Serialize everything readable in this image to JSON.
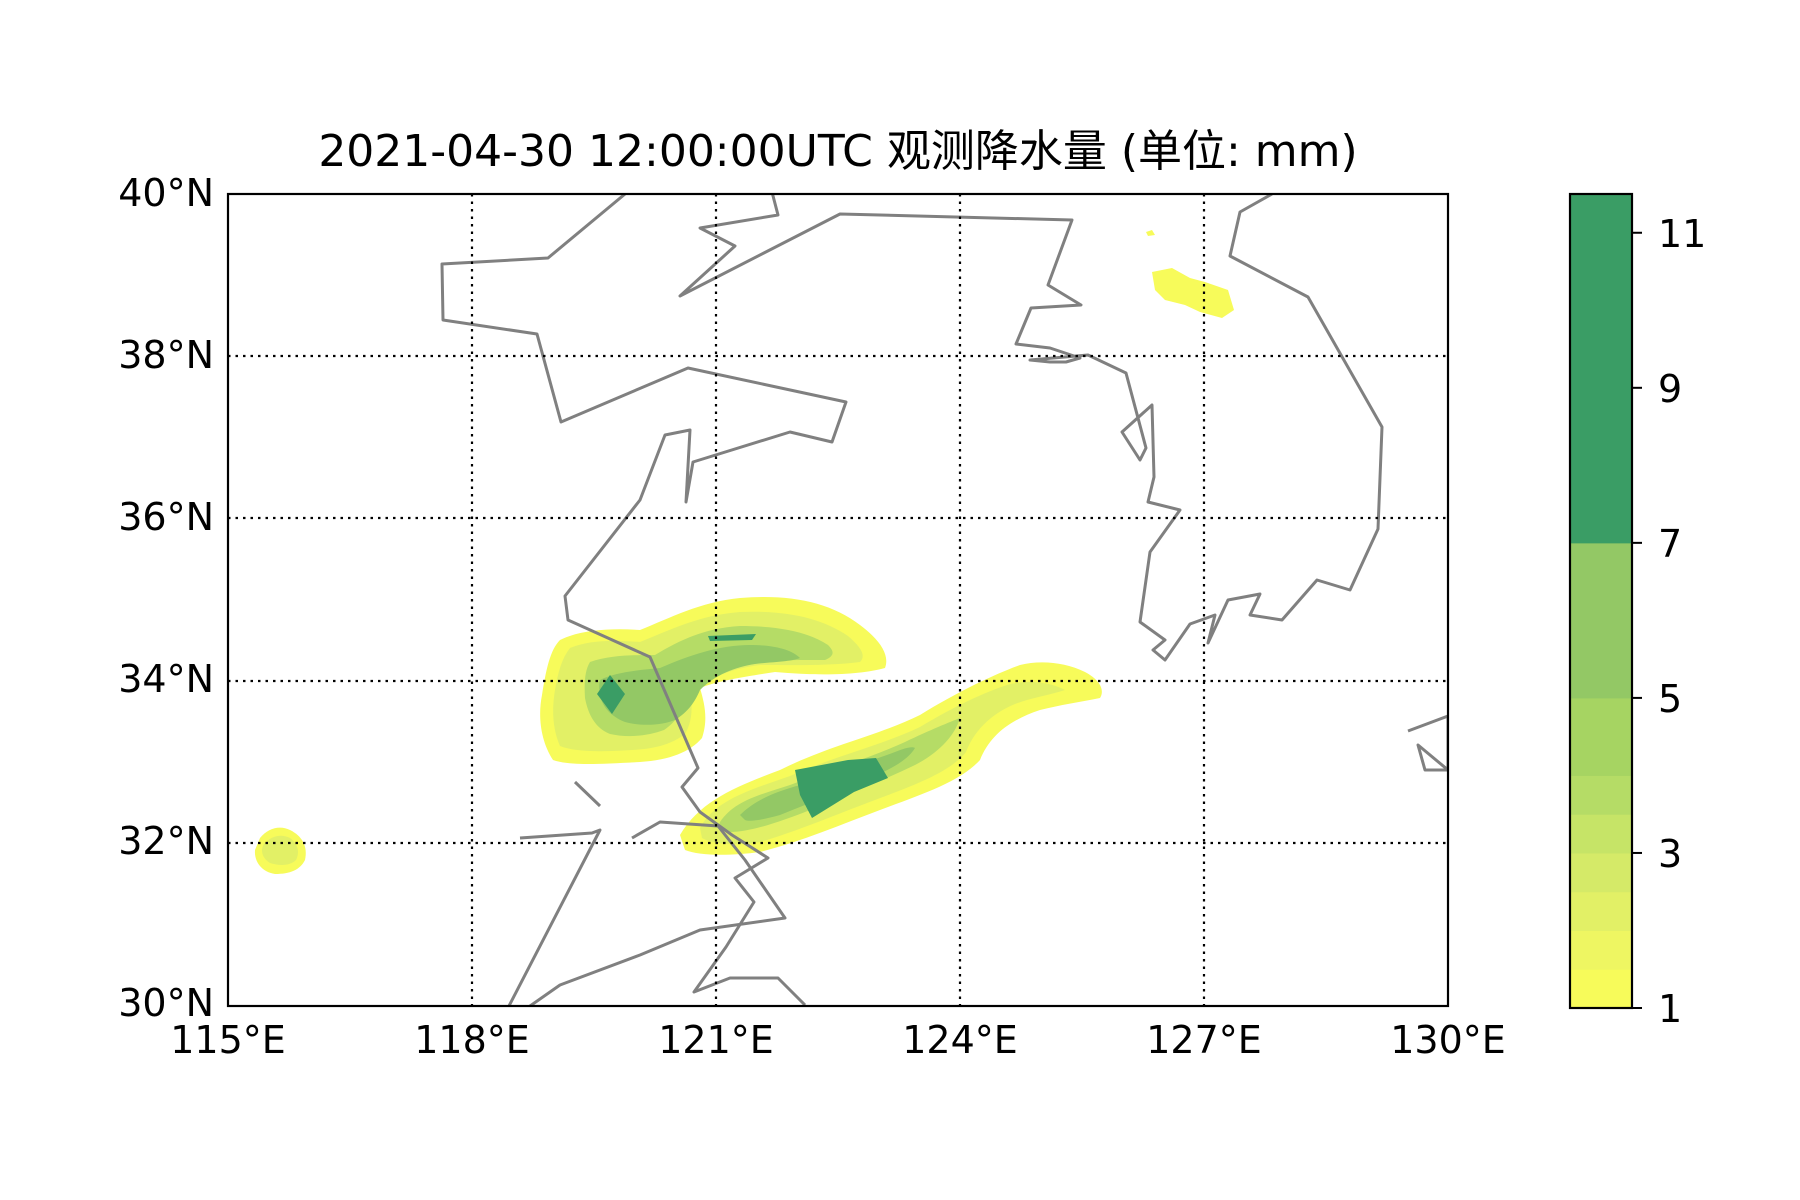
{
  "map": {
    "title": "2021-04-30 12:00:00UTC 观测降水量 (单位: mm)",
    "lat_labels": [
      "40°N",
      "38°N",
      "36°N",
      "34°N",
      "32°N",
      "30°N"
    ],
    "lon_labels": [
      "115°E",
      "118°E",
      "121°E",
      "124°E",
      "127°E",
      "130°E"
    ],
    "extent": {
      "lon": [
        115,
        130
      ],
      "lat": [
        30,
        40
      ]
    },
    "gridlines": {
      "style": "dotted",
      "color": "#000000",
      "lon": [
        118,
        121,
        124,
        127
      ],
      "lat": [
        32,
        34,
        36,
        38
      ]
    },
    "coastline_color": "#808080",
    "precip_regions": [
      "Shandong-Jiangsu coast near 34.5°N 121°E",
      "Jiangsu near 33.8°N 119.7°E",
      "Yellow Sea near 32.8°N 122.7°E",
      "Anhui near 31.7°N 115.5°E",
      "North Korea near 38.8°N 126.8°E"
    ]
  },
  "colorbar": {
    "ticks": [
      "1",
      "3",
      "5",
      "7",
      "9",
      "11"
    ],
    "levels": [
      1,
      1.5,
      2,
      2.5,
      3,
      3.5,
      4,
      5,
      7,
      11.5
    ],
    "colors": [
      "#f7fb5a",
      "#eef662",
      "#e2f066",
      "#d5ea68",
      "#c6e467",
      "#b5dc66",
      "#a6d462",
      "#93c865",
      "#3a9d65"
    ],
    "max": 11.5
  }
}
